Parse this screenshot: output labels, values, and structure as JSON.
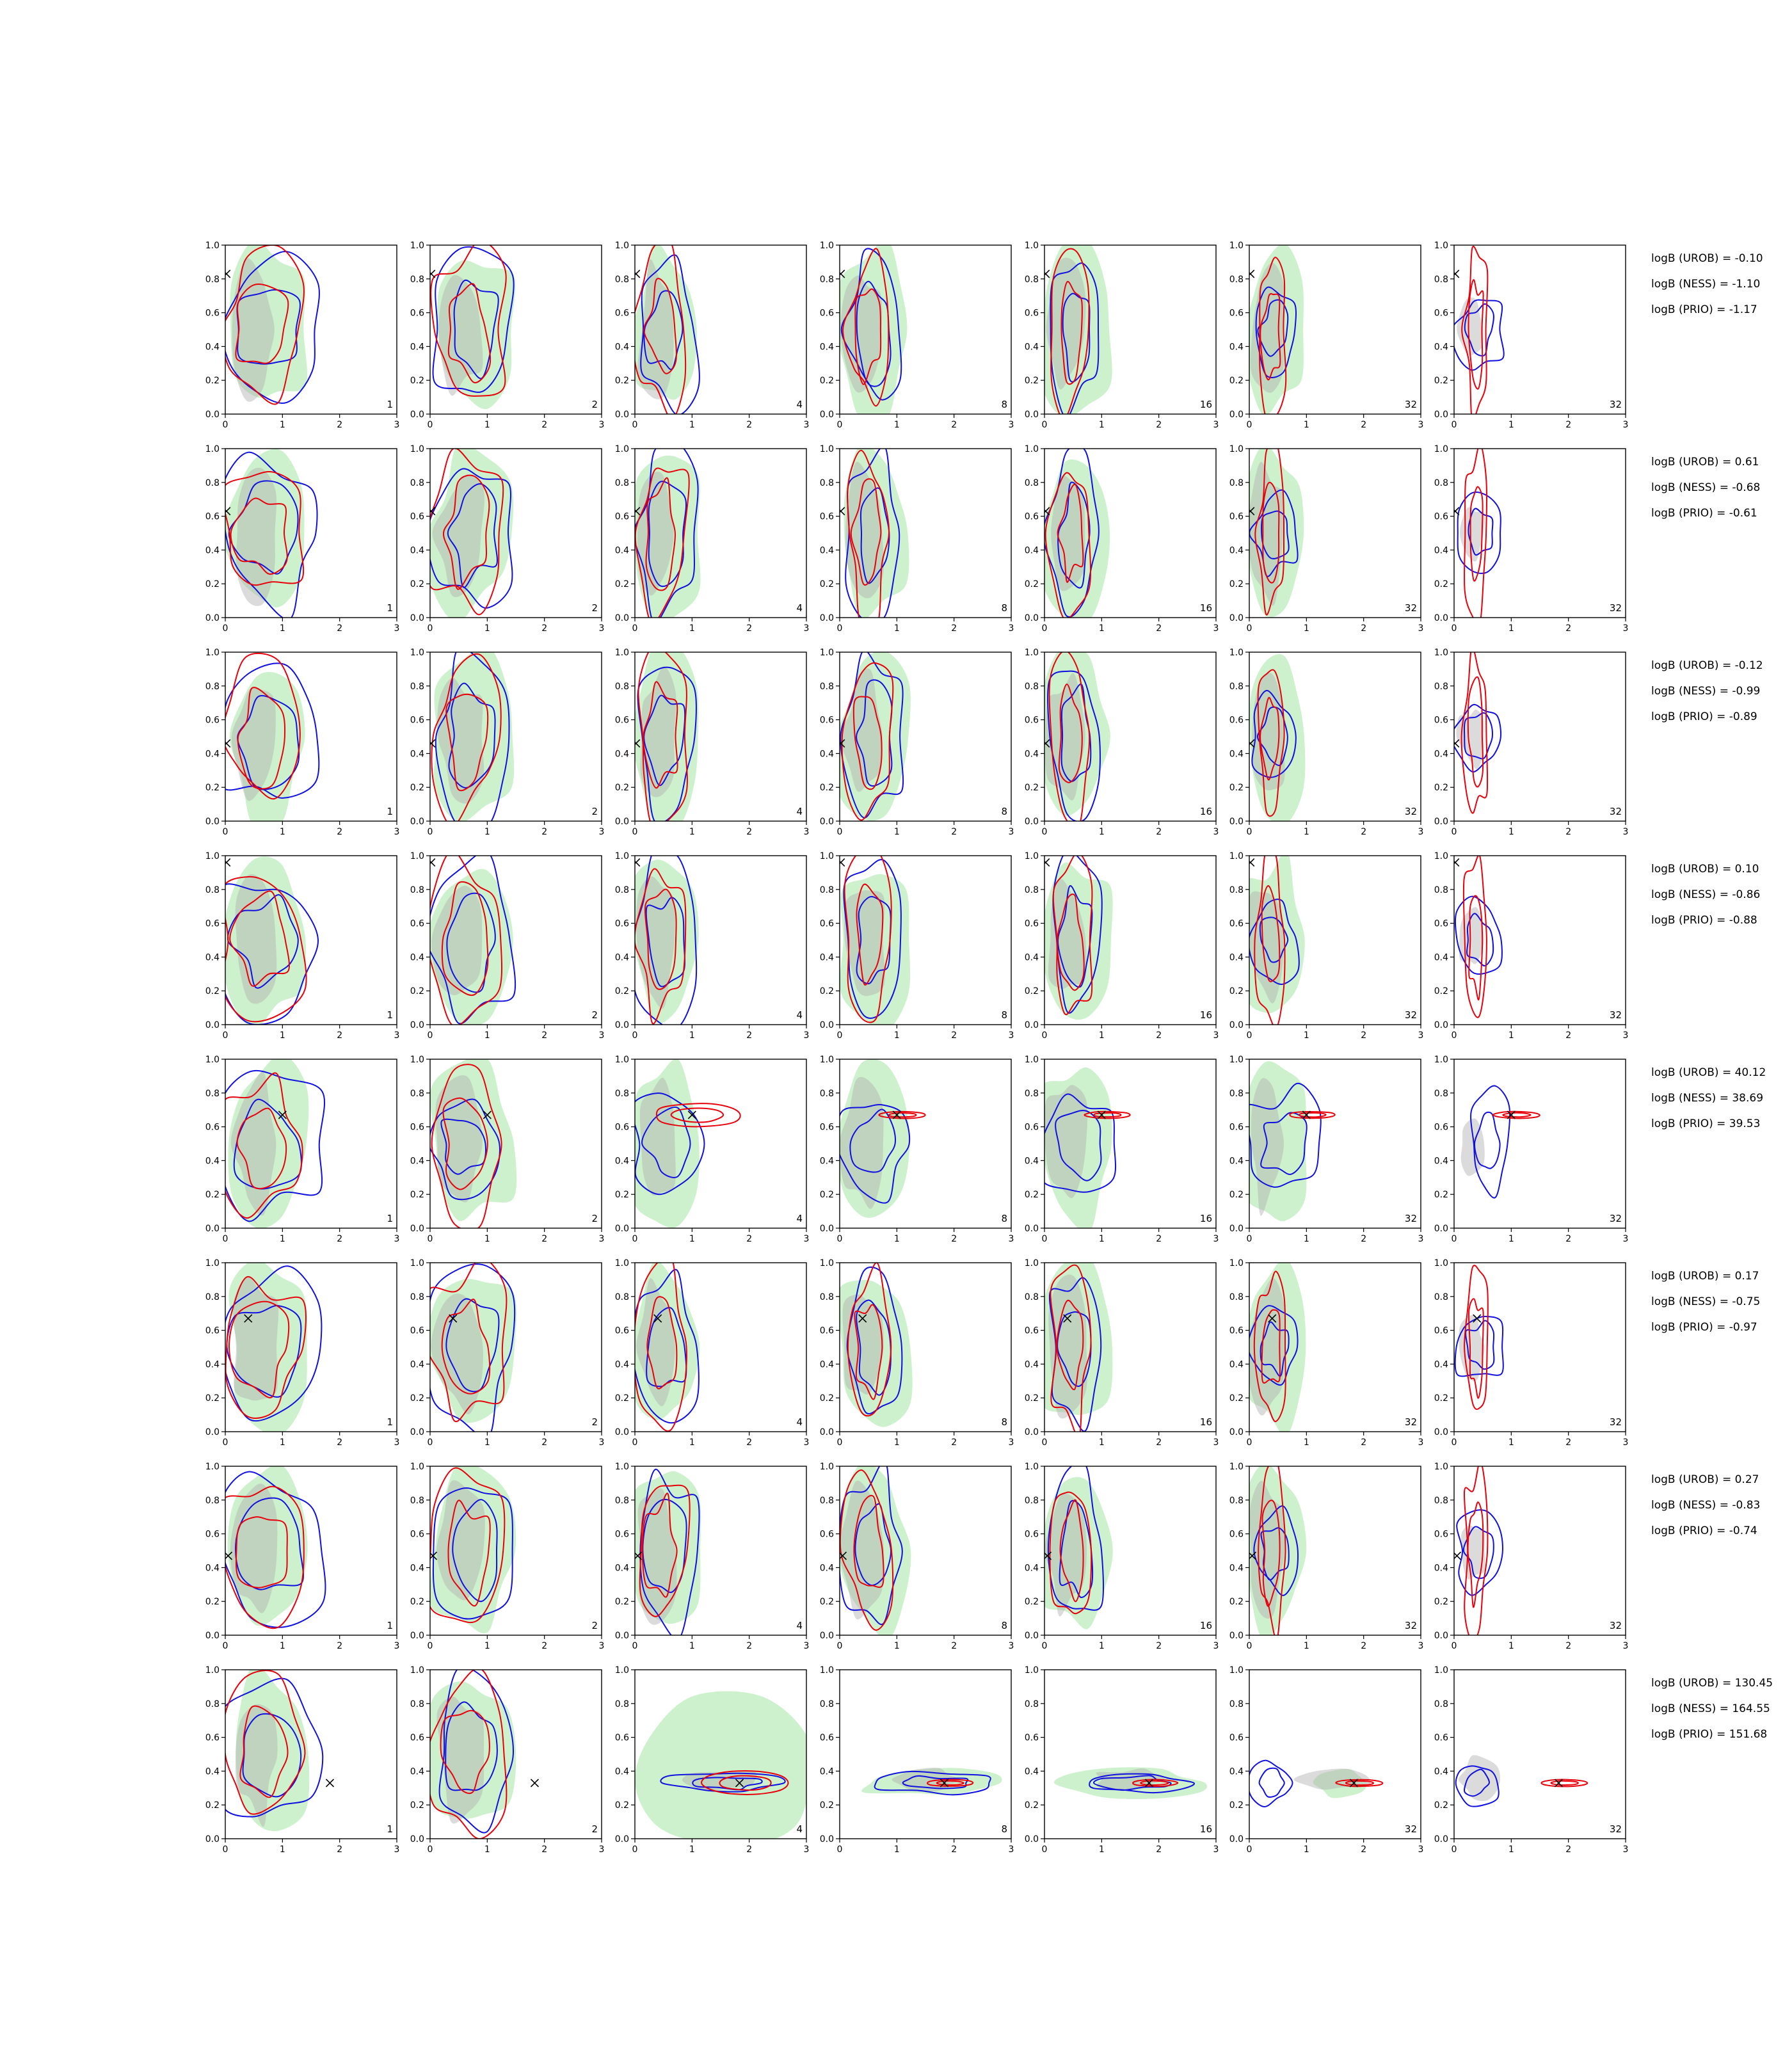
{
  "chart_data": {
    "type": "contour-grid",
    "x_ticks": [
      "0",
      "1",
      "2",
      "3"
    ],
    "y_ticks": [
      "0.0",
      "0.2",
      "0.4",
      "0.6",
      "0.8",
      "1.0"
    ],
    "xlim": [
      0,
      3
    ],
    "ylim": [
      0,
      1
    ],
    "columns": [
      {
        "label": "1"
      },
      {
        "label": "2"
      },
      {
        "label": "4"
      },
      {
        "label": "8"
      },
      {
        "label": "16"
      },
      {
        "label": "32"
      },
      {
        "label": "32"
      }
    ],
    "series_colors": {
      "red": "#e8000b",
      "blue": "#1010e0",
      "green_fill": "#a3e6a3",
      "grey_fill": "#b0b0b0",
      "marker": "#000000"
    },
    "rows": [
      {
        "truth": [
          0.02,
          0.83
        ],
        "stats": {
          "urob": "logB (UROB) = -0.10",
          "ness": "logB (NESS) = -1.10",
          "prio": "logB (PRIO) = -1.17"
        }
      },
      {
        "truth": [
          0.02,
          0.63
        ],
        "stats": {
          "urob": "logB (UROB) = 0.61",
          "ness": "logB (NESS) = -0.68",
          "prio": "logB (PRIO) = -0.61"
        }
      },
      {
        "truth": [
          0.02,
          0.46
        ],
        "stats": {
          "urob": "logB (UROB) = -0.12",
          "ness": "logB (NESS) = -0.99",
          "prio": "logB (PRIO) = -0.89"
        }
      },
      {
        "truth": [
          0.02,
          0.96
        ],
        "stats": {
          "urob": "logB (UROB) = 0.10",
          "ness": "logB (NESS) = -0.86",
          "prio": "logB (PRIO) = -0.88"
        }
      },
      {
        "truth": [
          1.0,
          0.67
        ],
        "stats": {
          "urob": "logB (UROB) = 40.12",
          "ness": "logB (NESS) = 38.69",
          "prio": "logB (PRIO) = 39.53"
        }
      },
      {
        "truth": [
          0.4,
          0.67
        ],
        "stats": {
          "urob": "logB (UROB) = 0.17",
          "ness": "logB (NESS) = -0.75",
          "prio": "logB (PRIO) = -0.97"
        }
      },
      {
        "truth": [
          0.05,
          0.47
        ],
        "stats": {
          "urob": "logB (UROB) = 0.27",
          "ness": "logB (NESS) = -0.83",
          "prio": "logB (PRIO) = -0.74"
        }
      },
      {
        "truth": [
          1.83,
          0.33
        ],
        "stats": {
          "urob": "logB (UROB) = 130.45",
          "ness": "logB (NESS) = 164.55",
          "prio": "logB (PRIO) = 151.68"
        }
      }
    ]
  }
}
